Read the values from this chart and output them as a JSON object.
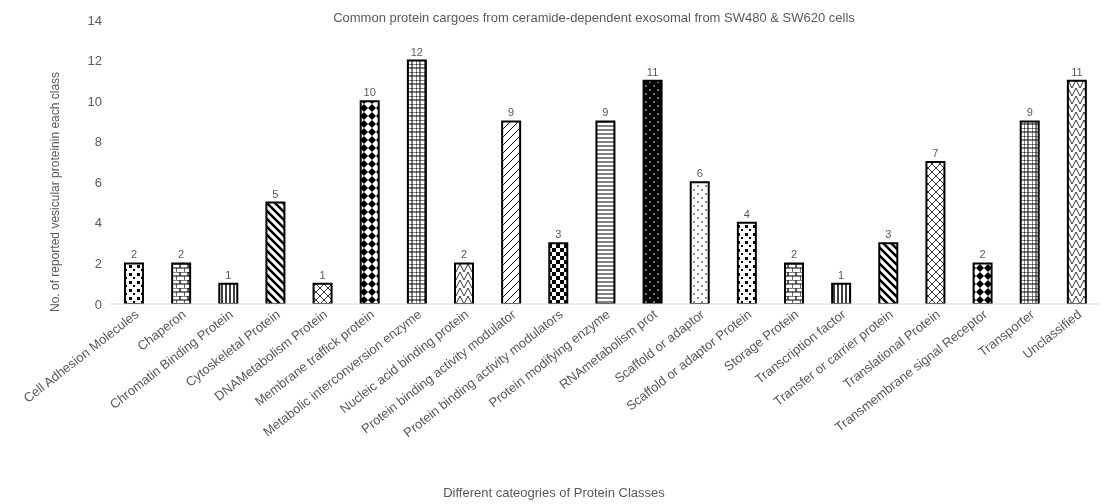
{
  "chart_data": {
    "type": "bar",
    "title": "Common protein  cargoes from ceramide-dependent exosomal from SW480 & SW620 cells",
    "xlabel": "Different cateogries of Protein Classes",
    "ylabel": "No. of reported vesicular proteinin each class",
    "categories": [
      "Cell Adhesion Molecules",
      "Chaperon",
      "Chromatin Binding Protein",
      "Cytoskeletal Protein",
      "DNAMetabolism Protein",
      "Membrane traffick protein",
      "Metabolic interconversion enzyme",
      "Nucleic acid binding protein",
      "Protein binding activity modulator",
      "Protein binding activity modulators",
      "Protein modifying enzyme",
      "RNAmetabolism prot",
      "Scaffold or adaptor",
      "Scaffold or adaptor Protein",
      "Storage Protein",
      "Transcription factor",
      "Transfer or carrier protein",
      "Translational Protein",
      "Transmembrane signal Receptor",
      "Transporter",
      "Unclassified"
    ],
    "values": [
      2,
      2,
      1,
      5,
      1,
      10,
      12,
      2,
      9,
      3,
      9,
      11,
      6,
      4,
      2,
      1,
      3,
      7,
      2,
      9,
      11
    ],
    "color": "#000000",
    "ylim": [
      0,
      14
    ],
    "yticks": [
      0,
      2,
      4,
      6,
      8,
      10,
      12,
      14
    ],
    "grid": false,
    "data_labels": true
  }
}
